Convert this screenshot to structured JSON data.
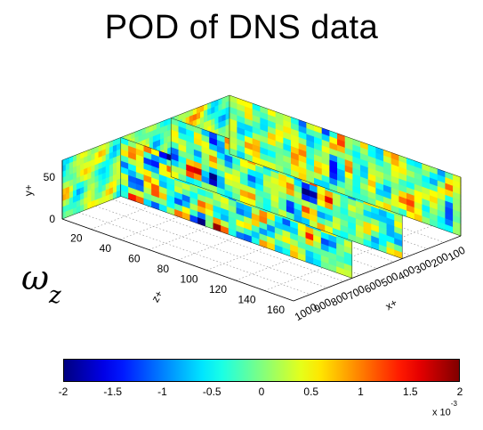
{
  "title": "POD of DNS data",
  "variable": {
    "symbol": "ω",
    "subscript": "z"
  },
  "axes": {
    "y": {
      "label": "y+",
      "ticks": [
        "0",
        "50"
      ]
    },
    "z": {
      "label": "z+",
      "ticks": [
        "20",
        "40",
        "60",
        "80",
        "100",
        "120",
        "140",
        "160"
      ]
    },
    "x": {
      "label": "x+",
      "ticks": [
        "1000",
        "900",
        "800",
        "700",
        "600",
        "500",
        "400",
        "300",
        "200",
        "100"
      ]
    }
  },
  "colorbar": {
    "colormap": "jet",
    "ticks": [
      "-2",
      "-1.5",
      "-1",
      "-0.5",
      "0",
      "0.5",
      "1",
      "1.5",
      "2"
    ],
    "exponent_base": "x 10",
    "exponent": "-3",
    "range": [
      -0.002,
      0.002
    ]
  },
  "slices": 4,
  "colors": {
    "dominant_field": "#3fd1e8",
    "negative": "#1c38d8",
    "positive": "#e8301c"
  }
}
